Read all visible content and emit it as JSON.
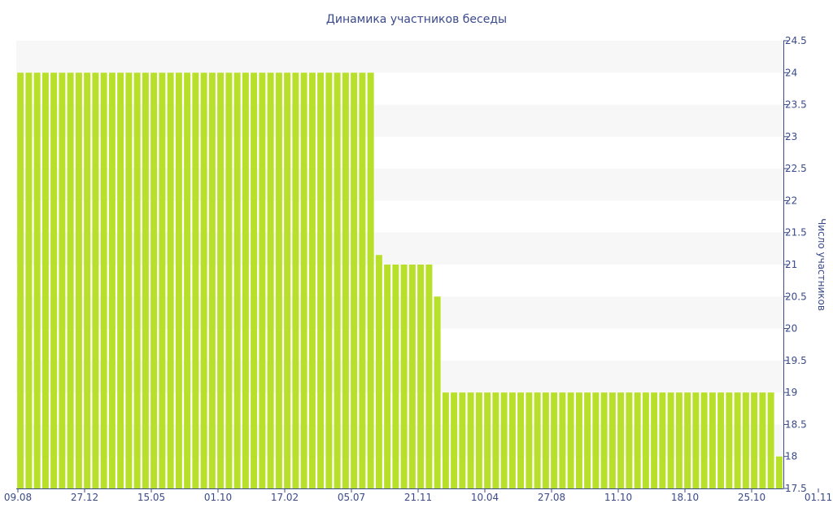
{
  "chart_data": {
    "type": "bar",
    "title": "Динамика участников беседы",
    "xlabel": "",
    "ylabel": "Число участников",
    "y_axis_side": "right",
    "ylim": [
      17.5,
      24.5
    ],
    "yticks": [
      "17.5",
      "18",
      "18.5",
      "19",
      "19.5",
      "20",
      "20.5",
      "21",
      "21.5",
      "22",
      "22.5",
      "23",
      "23.5",
      "24",
      "24.5"
    ],
    "xtick_labels": [
      "09.08",
      "27.12",
      "15.05",
      "01.10",
      "17.02",
      "05.07",
      "21.11",
      "10.04",
      "27.08",
      "11.10",
      "18.10",
      "25.10",
      "01.11"
    ],
    "grid": "horizontal bands",
    "colors": {
      "bar": "#b8e02a",
      "band": "#f7f7f7",
      "text": "#3a4a8a",
      "axis": "#3a4a8a"
    },
    "series": [
      {
        "values": [
          24,
          24,
          24,
          24,
          24,
          24,
          24,
          24,
          24,
          24,
          24,
          24,
          24,
          24,
          24,
          24,
          24,
          24,
          24,
          24,
          24,
          24,
          24,
          24,
          24,
          24,
          24,
          24,
          24,
          24,
          24,
          24,
          24,
          24,
          24,
          24,
          24,
          24,
          24,
          24,
          24,
          24,
          24,
          21.15,
          21,
          21,
          21,
          21,
          21,
          21,
          20.5,
          19,
          19,
          19,
          19,
          19,
          19,
          19,
          19,
          19,
          19,
          19,
          19,
          19,
          19,
          19,
          19,
          19,
          19,
          19,
          19,
          19,
          19,
          19,
          19,
          19,
          19,
          19,
          19,
          19,
          19,
          19,
          19,
          19,
          19,
          19,
          19,
          19,
          19,
          19,
          19,
          18
        ]
      }
    ]
  }
}
